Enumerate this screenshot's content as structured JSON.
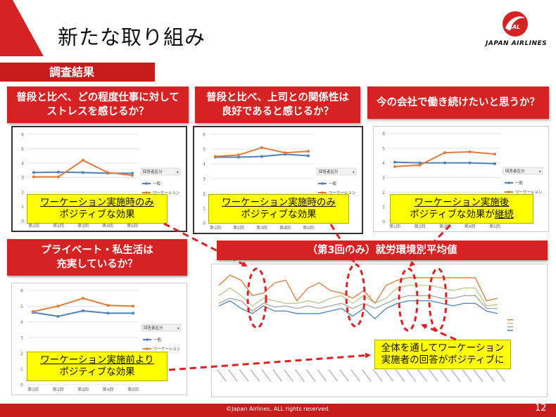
{
  "title": "新たな取り組み",
  "logo": {
    "text": "JAPAN AIRLINES",
    "mark": "JAL"
  },
  "section_label": "調査結果",
  "questions": {
    "q1": {
      "line1": "普段と比べ、どの程度仕事に対して",
      "line2": "ストレスを感じるか？"
    },
    "q2": {
      "line1": "普段と比べ、上司との関係性は",
      "line2": "良好であると感じるか？"
    },
    "q3": {
      "line1": "今の会社で働き続けたいと思うか？"
    },
    "q4": {
      "line1": "プライベート・私生活は",
      "line2": "充実しているか？"
    },
    "q5": {
      "line1": "（第3回のみ）就労環境別平均値"
    }
  },
  "captions": {
    "c1": {
      "line1": "ワーケーション実施時のみ",
      "line2": "ポジティブな効果"
    },
    "c2": {
      "line1": "ワーケーション実施時のみ",
      "line2": "ポジティブな効果"
    },
    "c3": {
      "line1": "ワーケーション実施後",
      "line2_a": "ポジティブな効果が",
      "line2_b": "継続"
    },
    "c4": {
      "line1": "ワーケーション実施前より",
      "line2": "ポジティブな効果"
    },
    "c5": {
      "line1": "全体を通してワーケーション",
      "line2": "実施者の回答がポジティブに"
    }
  },
  "footer": {
    "copyright": "©Japan Airlines, ALL rights reserved.",
    "page": "12"
  },
  "colors": {
    "red": "#c81c1c",
    "general": "#4f81bd",
    "workation": "#e07b39",
    "highlight": "#ffff00"
  },
  "chart_data": [
    {
      "type": "line",
      "categories": [
        "第1回",
        "第2回",
        "第3回",
        "第4回",
        "第5回"
      ],
      "ylim": [
        0,
        6
      ],
      "yticks": [
        "0",
        "1",
        "2",
        "3",
        "4",
        "5",
        "6"
      ],
      "legend_title": "回答者区分",
      "series": [
        {
          "name": "一般",
          "values": [
            3.35,
            3.38,
            3.35,
            3.3,
            3.3
          ]
        },
        {
          "name": "ワーケーション",
          "values": [
            3.05,
            3.05,
            4.2,
            3.35,
            3.15
          ]
        }
      ]
    },
    {
      "type": "line",
      "categories": [
        "第1回",
        "第2回",
        "第3回",
        "第4回",
        "第5回"
      ],
      "ylim": [
        0,
        6
      ],
      "yticks": [
        "0",
        "1",
        "2",
        "3",
        "4",
        "5",
        "6"
      ],
      "legend_title": "回答者区分",
      "series": [
        {
          "name": "一般",
          "values": [
            4.45,
            4.45,
            4.5,
            4.65,
            4.55
          ]
        },
        {
          "name": "ワーケーション",
          "values": [
            4.5,
            4.6,
            5.1,
            4.75,
            4.85
          ]
        }
      ]
    },
    {
      "type": "line",
      "categories": [
        "第1回",
        "第2回",
        "第3回",
        "第4回",
        "第5回"
      ],
      "ylim": [
        0,
        6
      ],
      "yticks": [
        "0",
        "1",
        "2",
        "3",
        "4",
        "5",
        "6"
      ],
      "legend_title": "回答者区分",
      "series": [
        {
          "name": "一般",
          "values": [
            4.05,
            4.0,
            4.0,
            4.0,
            3.95
          ]
        },
        {
          "name": "ワーケーション",
          "values": [
            3.75,
            3.85,
            4.7,
            4.75,
            4.6
          ]
        }
      ]
    },
    {
      "type": "line",
      "categories": [
        "第1回",
        "第2回",
        "第3回",
        "第4回",
        "第5回"
      ],
      "ylim": [
        0,
        6
      ],
      "yticks": [
        "0",
        "1",
        "2",
        "3",
        "4",
        "5",
        "6"
      ],
      "legend_title": "回答者区分",
      "series": [
        {
          "name": "一般",
          "values": [
            4.6,
            4.35,
            4.7,
            4.55,
            4.55
          ]
        },
        {
          "name": "ワーケーション",
          "values": [
            4.65,
            5.0,
            5.5,
            5.05,
            5.0
          ]
        }
      ]
    },
    {
      "type": "line",
      "ylim": [
        0,
        6
      ],
      "series": [
        {
          "values": [
            5.7,
            6.1,
            5.9,
            5.3,
            5.4,
            5.8,
            5.9,
            5.1,
            5.6,
            5.8,
            5.5,
            5.4,
            5.2,
            5.5,
            5.0,
            5.7,
            5.9,
            6.0,
            6.0,
            6.0,
            6.0,
            6.0,
            6.0,
            6.0,
            5.1,
            5.2
          ],
          "color": "#e07b39"
        },
        {
          "values": [
            5.3,
            5.6,
            5.3,
            4.9,
            5.2,
            5.1,
            5.0,
            5.0,
            5.1,
            5.0,
            5.2,
            5.3,
            5.0,
            5.3,
            5.0,
            5.2,
            5.6,
            5.7,
            5.7,
            5.7,
            5.6,
            5.5,
            5.6,
            5.6,
            4.9,
            4.95
          ],
          "color": "#b7c88a"
        },
        {
          "values": [
            5.0,
            5.2,
            5.1,
            4.7,
            5.0,
            4.85,
            4.9,
            4.8,
            4.9,
            4.8,
            4.9,
            5.0,
            4.8,
            5.0,
            4.8,
            5.0,
            5.2,
            5.3,
            5.3,
            5.3,
            5.2,
            5.2,
            5.3,
            5.3,
            4.8,
            4.8
          ],
          "color": "#a5a5a5"
        },
        {
          "values": [
            4.9,
            5.1,
            4.8,
            4.6,
            4.9,
            4.7,
            4.7,
            4.6,
            4.6,
            4.6,
            4.7,
            4.8,
            4.5,
            4.8,
            4.4,
            4.8,
            5.0,
            5.1,
            5.1,
            5.1,
            5.0,
            4.9,
            5.0,
            5.0,
            4.7,
            4.6
          ],
          "color": "#4f81bd"
        }
      ]
    }
  ]
}
